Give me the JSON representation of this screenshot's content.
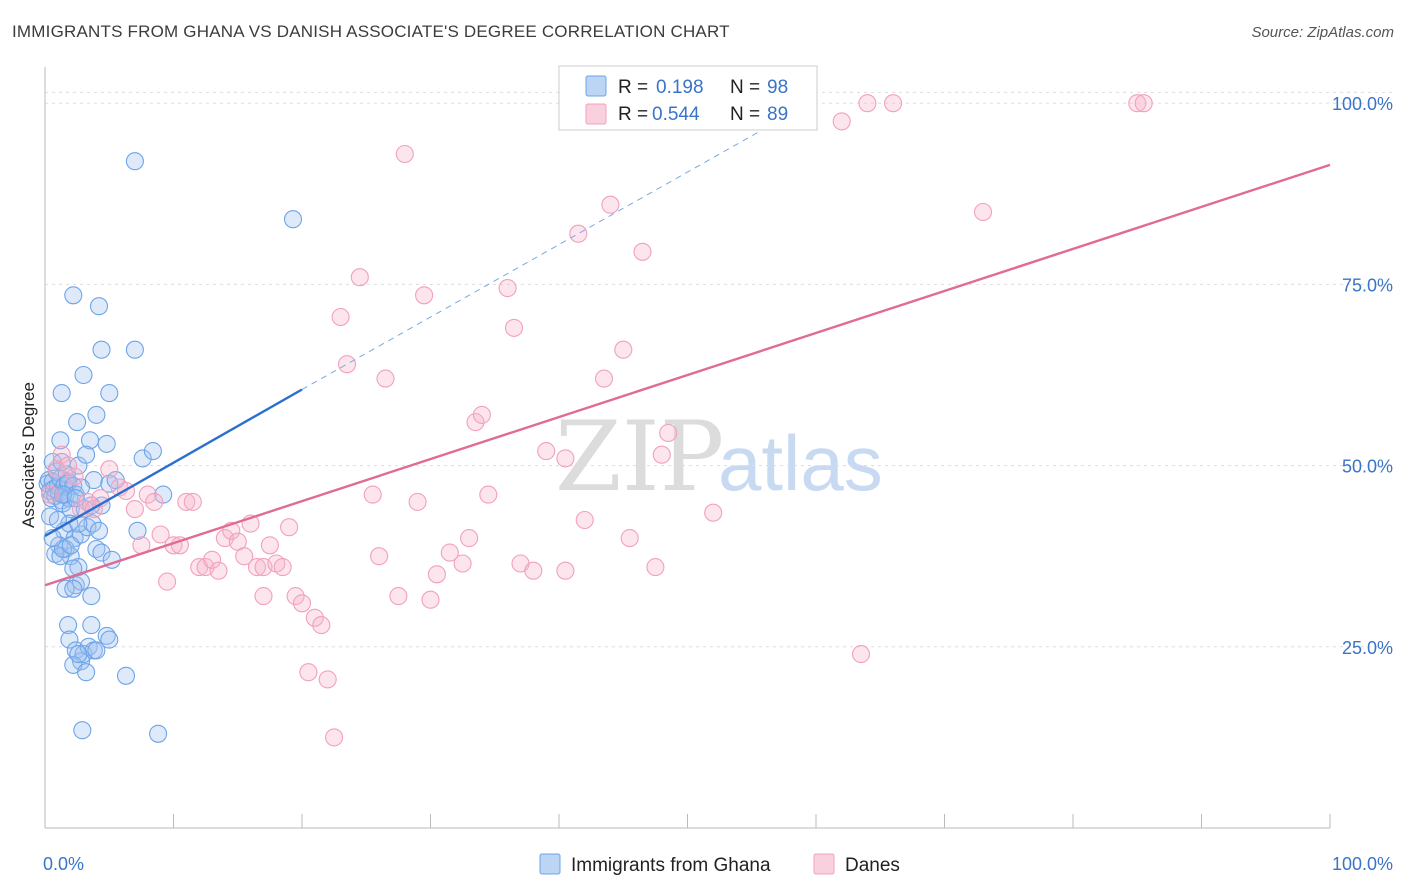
{
  "title": "IMMIGRANTS FROM GHANA VS DANISH ASSOCIATE'S DEGREE CORRELATION CHART",
  "source": "Source: ZipAtlas.com",
  "watermark": {
    "zip": "ZIP",
    "atlas": "atlas"
  },
  "legend": {
    "series1": {
      "r_label": "R =",
      "r_value": "0.198",
      "n_label": "N =",
      "n_value": "98",
      "color": "#6ea4e8"
    },
    "series2": {
      "r_label": "R =",
      "r_value": "0.544",
      "n_label": "N =",
      "n_value": "89",
      "color": "#f2a0bd"
    }
  },
  "bottom_legend": {
    "series1": "Immigrants from Ghana",
    "series2": "Danes"
  },
  "chart_data": {
    "type": "scatter",
    "title": "IMMIGRANTS FROM GHANA VS DANISH ASSOCIATE'S DEGREE CORRELATION CHART",
    "xlabel": "",
    "ylabel": "Associate's Degree",
    "xlim": [
      0,
      100
    ],
    "ylim": [
      0,
      105
    ],
    "x_tick_labels": [
      "0.0%",
      "100.0%"
    ],
    "y_ticks": [
      25,
      50,
      75,
      100
    ],
    "y_tick_labels": [
      "25.0%",
      "50.0%",
      "75.0%",
      "100.0%"
    ],
    "grid": true,
    "series": [
      {
        "name": "Immigrants from Ghana",
        "color": "#6ea4e8",
        "line_color": "#2b6fcd",
        "trend": {
          "x0": 0,
          "y0": 40.3,
          "x1": 20,
          "y1": 60.5,
          "dash_x1": 60,
          "dash_y1": 100.5
        },
        "points": [
          [
            0.2,
            47.5
          ],
          [
            0.3,
            48.0
          ],
          [
            0.4,
            46.5
          ],
          [
            0.5,
            45.5
          ],
          [
            0.6,
            47.8
          ],
          [
            0.7,
            46.8
          ],
          [
            0.8,
            45.8
          ],
          [
            0.9,
            49.2
          ],
          [
            1.0,
            47.2
          ],
          [
            1.1,
            46.2
          ],
          [
            1.2,
            48.2
          ],
          [
            1.3,
            45.2
          ],
          [
            1.4,
            44.8
          ],
          [
            1.5,
            47.2
          ],
          [
            1.6,
            46.0
          ],
          [
            1.7,
            48.8
          ],
          [
            1.8,
            47.5
          ],
          [
            1.9,
            45.5
          ],
          [
            0.4,
            43.0
          ],
          [
            0.6,
            50.5
          ],
          [
            1.2,
            53.5
          ],
          [
            1.3,
            60.0
          ],
          [
            2.2,
            73.5
          ],
          [
            2.5,
            56.0
          ],
          [
            3.0,
            62.5
          ],
          [
            3.5,
            53.5
          ],
          [
            4.0,
            57.0
          ],
          [
            4.2,
            72.0
          ],
          [
            4.4,
            66.0
          ],
          [
            4.8,
            53.0
          ],
          [
            5.0,
            60.0
          ],
          [
            7.0,
            66.0
          ],
          [
            7.2,
            41.0
          ],
          [
            7.6,
            51.0
          ],
          [
            8.4,
            52.0
          ],
          [
            9.2,
            46.0
          ],
          [
            7.0,
            92.0
          ],
          [
            19.3,
            84.0
          ],
          [
            1.3,
            50.5
          ],
          [
            1.8,
            47.8
          ],
          [
            2.2,
            47.2
          ],
          [
            2.6,
            50.0
          ],
          [
            3.2,
            51.5
          ],
          [
            3.8,
            48.0
          ],
          [
            4.4,
            44.5
          ],
          [
            5.0,
            47.5
          ],
          [
            5.5,
            48.0
          ],
          [
            2.0,
            44.0
          ],
          [
            2.4,
            46.0
          ],
          [
            2.8,
            47.0
          ],
          [
            1.5,
            41.0
          ],
          [
            1.9,
            42.0
          ],
          [
            2.3,
            40.0
          ],
          [
            2.8,
            40.5
          ],
          [
            3.3,
            41.5
          ],
          [
            3.7,
            42.0
          ],
          [
            4.2,
            41.0
          ],
          [
            1.1,
            39.0
          ],
          [
            1.6,
            38.5
          ],
          [
            2.0,
            37.5
          ],
          [
            0.8,
            37.8
          ],
          [
            1.2,
            37.5
          ],
          [
            2.6,
            36.0
          ],
          [
            4.0,
            38.5
          ],
          [
            4.4,
            38.0
          ],
          [
            5.2,
            37.0
          ],
          [
            2.2,
            35.8
          ],
          [
            2.4,
            33.5
          ],
          [
            2.8,
            34.0
          ],
          [
            3.6,
            32.0
          ],
          [
            1.6,
            33.0
          ],
          [
            2.2,
            33.0
          ],
          [
            1.8,
            28.0
          ],
          [
            3.6,
            28.0
          ],
          [
            4.8,
            26.5
          ],
          [
            5.0,
            26.0
          ],
          [
            1.9,
            26.0
          ],
          [
            2.4,
            24.5
          ],
          [
            2.8,
            23.0
          ],
          [
            3.0,
            24.0
          ],
          [
            3.4,
            25.0
          ],
          [
            3.8,
            24.5
          ],
          [
            4.0,
            24.5
          ],
          [
            2.2,
            22.5
          ],
          [
            2.6,
            24.0
          ],
          [
            3.2,
            21.5
          ],
          [
            6.3,
            21.0
          ],
          [
            2.9,
            13.5
          ],
          [
            8.8,
            13.0
          ],
          [
            1.4,
            38.5
          ],
          [
            2.0,
            39.0
          ],
          [
            2.6,
            42.0
          ],
          [
            3.1,
            44.0
          ],
          [
            1.0,
            42.5
          ],
          [
            0.6,
            40.0
          ],
          [
            3.6,
            44.5
          ],
          [
            1.4,
            46.0
          ],
          [
            2.4,
            45.5
          ]
        ]
      },
      {
        "name": "Danes",
        "color": "#f2a0bd",
        "line_color": "#e06b93",
        "trend": {
          "x0": 0,
          "y0": 33.5,
          "x1": 100,
          "y1": 91.5
        },
        "points": [
          [
            0.4,
            46.0
          ],
          [
            0.9,
            49.5
          ],
          [
            1.3,
            51.5
          ],
          [
            1.8,
            50.0
          ],
          [
            2.3,
            48.5
          ],
          [
            2.8,
            44.0
          ],
          [
            3.3,
            45.0
          ],
          [
            3.8,
            44.0
          ],
          [
            4.3,
            45.5
          ],
          [
            5.0,
            49.5
          ],
          [
            5.8,
            47.0
          ],
          [
            6.3,
            46.5
          ],
          [
            7.0,
            44.0
          ],
          [
            7.5,
            39.0
          ],
          [
            8.0,
            46.0
          ],
          [
            8.5,
            45.0
          ],
          [
            9.0,
            40.5
          ],
          [
            9.5,
            34.0
          ],
          [
            10.0,
            39.0
          ],
          [
            10.5,
            39.0
          ],
          [
            11.0,
            45.0
          ],
          [
            11.5,
            45.0
          ],
          [
            12.0,
            36.0
          ],
          [
            12.5,
            36.0
          ],
          [
            13.0,
            37.0
          ],
          [
            13.5,
            35.5
          ],
          [
            14.0,
            40.0
          ],
          [
            14.5,
            41.0
          ],
          [
            15.0,
            39.5
          ],
          [
            15.5,
            37.5
          ],
          [
            16.0,
            42.0
          ],
          [
            16.5,
            36.0
          ],
          [
            17.0,
            36.0
          ],
          [
            17.5,
            39.0
          ],
          [
            18.0,
            36.5
          ],
          [
            18.5,
            36.0
          ],
          [
            19.0,
            41.5
          ],
          [
            19.5,
            32.0
          ],
          [
            20.0,
            31.0
          ],
          [
            20.5,
            21.5
          ],
          [
            21.0,
            29.0
          ],
          [
            21.5,
            28.0
          ],
          [
            22.0,
            20.5
          ],
          [
            22.5,
            12.5
          ],
          [
            23.0,
            70.5
          ],
          [
            23.5,
            64.0
          ],
          [
            24.5,
            76.0
          ],
          [
            25.5,
            46.0
          ],
          [
            26.0,
            37.5
          ],
          [
            26.5,
            62.0
          ],
          [
            27.5,
            32.0
          ],
          [
            28.0,
            93.0
          ],
          [
            29.0,
            45.0
          ],
          [
            29.5,
            73.5
          ],
          [
            30.0,
            31.5
          ],
          [
            30.5,
            35.0
          ],
          [
            31.5,
            38.0
          ],
          [
            32.5,
            36.5
          ],
          [
            33.0,
            40.0
          ],
          [
            33.5,
            56.0
          ],
          [
            34.0,
            57.0
          ],
          [
            34.5,
            46.0
          ],
          [
            36.0,
            74.5
          ],
          [
            36.5,
            69.0
          ],
          [
            37.0,
            36.5
          ],
          [
            38.0,
            35.5
          ],
          [
            39.0,
            52.0
          ],
          [
            40.5,
            51.0
          ],
          [
            40.5,
            35.5
          ],
          [
            41.5,
            82.0
          ],
          [
            42.0,
            42.5
          ],
          [
            43.5,
            62.0
          ],
          [
            44.0,
            86.0
          ],
          [
            45.0,
            66.0
          ],
          [
            45.5,
            40.0
          ],
          [
            46.5,
            79.5
          ],
          [
            47.5,
            36.0
          ],
          [
            48.0,
            51.5
          ],
          [
            48.5,
            54.5
          ],
          [
            52.0,
            43.5
          ],
          [
            58.0,
            100.0
          ],
          [
            62.0,
            97.5
          ],
          [
            63.5,
            24.0
          ],
          [
            64.0,
            100.0
          ],
          [
            66.0,
            100.0
          ],
          [
            73.0,
            85.0
          ],
          [
            85.0,
            100.0
          ],
          [
            85.5,
            100.0
          ],
          [
            17.0,
            32.0
          ]
        ]
      }
    ]
  }
}
